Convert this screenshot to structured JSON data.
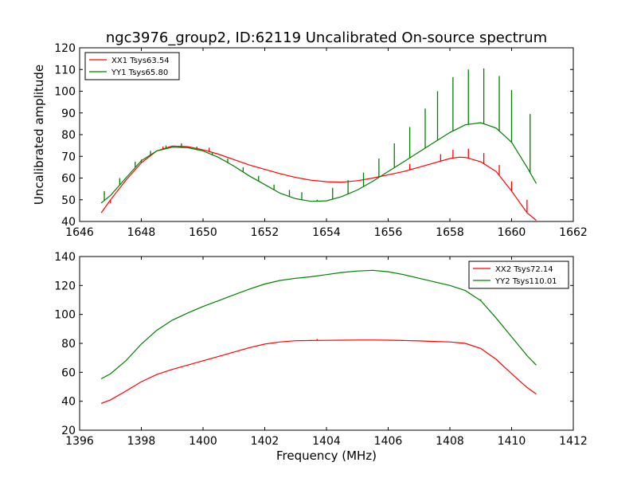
{
  "figure": {
    "title": "ngc3976_group2, ID:62119 Uncalibrated On-source spectrum",
    "xlabel": "Frequency (MHz)",
    "ylabel": "Uncalibrated amplitude"
  },
  "chart_data": [
    {
      "type": "line",
      "title": "ngc3976_group2, ID:62119 Uncalibrated On-source spectrum",
      "xlabel": "",
      "ylabel": "Uncalibrated amplitude",
      "xlim": [
        1646,
        1662
      ],
      "ylim": [
        40,
        120
      ],
      "xticks": [
        1646,
        1648,
        1650,
        1652,
        1654,
        1656,
        1658,
        1660,
        1662
      ],
      "yticks": [
        40,
        50,
        60,
        70,
        80,
        90,
        100,
        110,
        120
      ],
      "grid": false,
      "legend": "top-left",
      "series": [
        {
          "name": "XX1 Tsys63.54",
          "color": "#ff0000",
          "points": [
            [
              1646.7,
              44.0
            ],
            [
              1647.0,
              50.0
            ],
            [
              1647.5,
              59.0
            ],
            [
              1648.0,
              67.0
            ],
            [
              1648.5,
              72.5
            ],
            [
              1649.0,
              74.7
            ],
            [
              1649.5,
              74.5
            ],
            [
              1650.0,
              73.0
            ],
            [
              1650.5,
              71.0
            ],
            [
              1651.0,
              68.5
            ],
            [
              1651.5,
              66.0
            ],
            [
              1652.0,
              64.0
            ],
            [
              1652.5,
              62.0
            ],
            [
              1653.0,
              60.3
            ],
            [
              1653.5,
              59.0
            ],
            [
              1654.0,
              58.3
            ],
            [
              1654.5,
              58.1
            ],
            [
              1655.0,
              58.8
            ],
            [
              1655.5,
              60.0
            ],
            [
              1656.0,
              61.5
            ],
            [
              1656.5,
              63.0
            ],
            [
              1657.0,
              65.0
            ],
            [
              1657.5,
              67.0
            ],
            [
              1658.0,
              69.0
            ],
            [
              1658.3,
              69.6
            ],
            [
              1658.5,
              69.5
            ],
            [
              1659.0,
              67.5
            ],
            [
              1659.5,
              63.0
            ],
            [
              1660.0,
              54.0
            ],
            [
              1660.5,
              44.0
            ],
            [
              1660.8,
              40.5
            ]
          ],
          "spikes": [
            [
              1647.0,
              48.5
            ],
            [
              1648.0,
              68.5
            ],
            [
              1648.7,
              74.5
            ],
            [
              1649.3,
              76.0
            ],
            [
              1650.2,
              74.0
            ],
            [
              1653.7,
              59.0
            ],
            [
              1656.7,
              66.5
            ],
            [
              1657.7,
              71.0
            ],
            [
              1658.1,
              73.0
            ],
            [
              1658.6,
              73.5
            ],
            [
              1659.1,
              71.5
            ],
            [
              1659.6,
              66.0
            ],
            [
              1660.0,
              58.5
            ],
            [
              1660.5,
              50.0
            ]
          ]
        },
        {
          "name": "YY1 Tsys65.80",
          "color": "#008000",
          "points": [
            [
              1646.7,
              48.5
            ],
            [
              1647.0,
              52.0
            ],
            [
              1647.5,
              60.0
            ],
            [
              1648.0,
              68.0
            ],
            [
              1648.5,
              72.5
            ],
            [
              1649.0,
              74.2
            ],
            [
              1649.5,
              74.0
            ],
            [
              1650.0,
              72.5
            ],
            [
              1650.5,
              69.5
            ],
            [
              1651.0,
              65.5
            ],
            [
              1651.5,
              61.0
            ],
            [
              1652.0,
              57.0
            ],
            [
              1652.5,
              53.0
            ],
            [
              1653.0,
              50.5
            ],
            [
              1653.5,
              49.3
            ],
            [
              1654.0,
              49.5
            ],
            [
              1654.5,
              51.5
            ],
            [
              1655.0,
              54.5
            ],
            [
              1655.5,
              58.5
            ],
            [
              1656.0,
              63.0
            ],
            [
              1656.5,
              67.5
            ],
            [
              1657.0,
              72.0
            ],
            [
              1657.5,
              76.5
            ],
            [
              1658.0,
              81.0
            ],
            [
              1658.5,
              84.5
            ],
            [
              1659.0,
              85.5
            ],
            [
              1659.5,
              83.0
            ],
            [
              1660.0,
              76.5
            ],
            [
              1660.5,
              65.0
            ],
            [
              1660.8,
              57.5
            ]
          ],
          "spikes": [
            [
              1646.8,
              54.0
            ],
            [
              1647.3,
              60.0
            ],
            [
              1647.8,
              67.5
            ],
            [
              1648.3,
              72.5
            ],
            [
              1648.8,
              75.0
            ],
            [
              1649.3,
              75.5
            ],
            [
              1649.8,
              74.5
            ],
            [
              1650.3,
              72.0
            ],
            [
              1650.8,
              69.0
            ],
            [
              1651.3,
              65.0
            ],
            [
              1651.8,
              61.0
            ],
            [
              1652.3,
              57.0
            ],
            [
              1652.8,
              54.5
            ],
            [
              1653.2,
              53.5
            ],
            [
              1653.7,
              50.0
            ],
            [
              1654.2,
              55.5
            ],
            [
              1654.7,
              59.0
            ],
            [
              1655.2,
              62.5
            ],
            [
              1655.7,
              69.0
            ],
            [
              1656.2,
              76.0
            ],
            [
              1656.7,
              83.5
            ],
            [
              1657.2,
              92.0
            ],
            [
              1657.6,
              100.0
            ],
            [
              1658.1,
              106.5
            ],
            [
              1658.6,
              110.0
            ],
            [
              1659.1,
              110.5
            ],
            [
              1659.6,
              107.0
            ],
            [
              1660.0,
              100.5
            ],
            [
              1660.6,
              89.5
            ]
          ]
        }
      ]
    },
    {
      "type": "line",
      "title": "",
      "xlabel": "Frequency (MHz)",
      "ylabel": "",
      "xlim": [
        1396,
        1412
      ],
      "ylim": [
        20,
        140
      ],
      "xticks": [
        1396,
        1398,
        1400,
        1402,
        1404,
        1406,
        1408,
        1410,
        1412
      ],
      "yticks": [
        20,
        40,
        60,
        80,
        100,
        120,
        140
      ],
      "grid": false,
      "legend": "top-right",
      "series": [
        {
          "name": "XX2 Tsys72.14",
          "color": "#ff0000",
          "points": [
            [
              1396.7,
              38.5
            ],
            [
              1397.0,
              41.0
            ],
            [
              1397.5,
              47.0
            ],
            [
              1398.0,
              53.5
            ],
            [
              1398.5,
              58.5
            ],
            [
              1399.0,
              62.0
            ],
            [
              1399.5,
              65.0
            ],
            [
              1400.0,
              68.0
            ],
            [
              1400.5,
              71.0
            ],
            [
              1401.0,
              74.0
            ],
            [
              1401.5,
              77.0
            ],
            [
              1402.0,
              79.5
            ],
            [
              1402.5,
              81.0
            ],
            [
              1403.0,
              81.8
            ],
            [
              1403.5,
              82.0
            ],
            [
              1404.0,
              82.1
            ],
            [
              1404.5,
              82.2
            ],
            [
              1405.0,
              82.3
            ],
            [
              1405.5,
              82.3
            ],
            [
              1406.0,
              82.2
            ],
            [
              1406.5,
              82.0
            ],
            [
              1407.0,
              81.7
            ],
            [
              1407.5,
              81.3
            ],
            [
              1408.0,
              81.0
            ],
            [
              1408.5,
              80.0
            ],
            [
              1409.0,
              76.5
            ],
            [
              1409.5,
              69.0
            ],
            [
              1410.0,
              59.0
            ],
            [
              1410.5,
              49.5
            ],
            [
              1410.8,
              45.0
            ]
          ],
          "spikes": [
            [
              1403.7,
              83.0
            ]
          ]
        },
        {
          "name": "YY2 Tsys110.01",
          "color": "#008000",
          "points": [
            [
              1396.7,
              55.5
            ],
            [
              1397.0,
              59.0
            ],
            [
              1397.5,
              68.0
            ],
            [
              1398.0,
              79.5
            ],
            [
              1398.5,
              89.0
            ],
            [
              1399.0,
              96.0
            ],
            [
              1399.5,
              101.0
            ],
            [
              1400.0,
              105.5
            ],
            [
              1400.5,
              109.5
            ],
            [
              1401.0,
              113.5
            ],
            [
              1401.5,
              117.5
            ],
            [
              1402.0,
              121.0
            ],
            [
              1402.5,
              123.5
            ],
            [
              1403.0,
              125.0
            ],
            [
              1403.5,
              126.0
            ],
            [
              1404.0,
              127.5
            ],
            [
              1404.5,
              129.0
            ],
            [
              1405.0,
              130.0
            ],
            [
              1405.5,
              130.5
            ],
            [
              1406.0,
              129.5
            ],
            [
              1406.5,
              127.5
            ],
            [
              1407.0,
              125.0
            ],
            [
              1407.5,
              122.5
            ],
            [
              1408.0,
              120.0
            ],
            [
              1408.5,
              116.5
            ],
            [
              1409.0,
              109.5
            ],
            [
              1409.5,
              97.5
            ],
            [
              1410.0,
              84.5
            ],
            [
              1410.5,
              71.5
            ],
            [
              1410.8,
              65.0
            ]
          ],
          "spikes": [
            [
              1409.0,
              110.5
            ]
          ]
        }
      ]
    }
  ]
}
